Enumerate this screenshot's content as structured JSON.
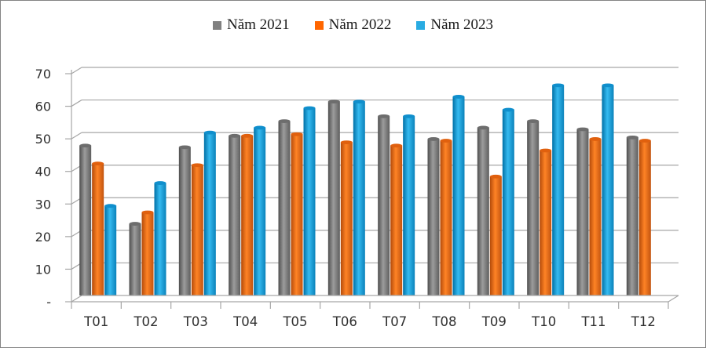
{
  "chart_data": {
    "type": "bar",
    "bar_style": "3d-cylinder",
    "title": "",
    "xlabel": "",
    "ylabel": "",
    "categories": [
      "T01",
      "T02",
      "T03",
      "T04",
      "T05",
      "T06",
      "T07",
      "T08",
      "T09",
      "T10",
      "T11",
      "T12"
    ],
    "series": [
      {
        "name": "Năm 2021",
        "color": "#808080",
        "gradient": [
          "#4f4f4f",
          "#9c9c9c",
          "#5e5e5e"
        ],
        "cap_color": "#6d6d6d",
        "values": [
          46,
          22,
          45.5,
          49,
          53.5,
          59.5,
          55,
          48,
          51.5,
          53.5,
          51,
          48.5
        ]
      },
      {
        "name": "Năm 2022",
        "color": "#ff6600",
        "gradient": [
          "#b34a0a",
          "#ff8325",
          "#c25410"
        ],
        "cap_color": "#e0600e",
        "values": [
          40.5,
          25.5,
          40,
          49,
          49.5,
          47,
          46,
          47.5,
          36.5,
          44.5,
          48,
          47.5
        ]
      },
      {
        "name": "Năm 2023",
        "color": "#29abe2",
        "gradient": [
          "#0070a6",
          "#35baf0",
          "#0b82ba"
        ],
        "cap_color": "#0f8fcd",
        "values": [
          27.5,
          34.5,
          50,
          51.5,
          57.5,
          59.5,
          55,
          61,
          57,
          64.5,
          64.5,
          null
        ]
      }
    ],
    "ylim": [
      0,
      70
    ],
    "ytick_interval": 10,
    "ytick_labels_top_to_bottom": [
      "70",
      "60",
      "50",
      "40",
      "30",
      "20",
      "10",
      "-"
    ],
    "grid": true,
    "legend_position": "top-center",
    "grid_color": "#a6a6a6",
    "axis_text_color": "#303030"
  }
}
